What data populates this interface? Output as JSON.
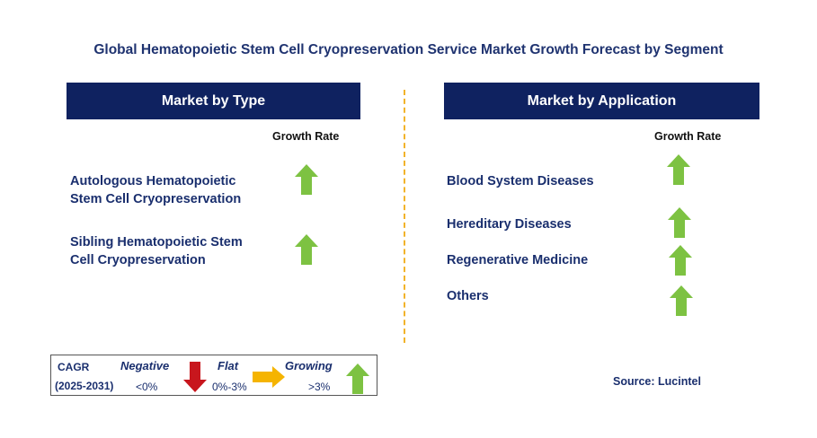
{
  "title": "Global Hematopoietic Stem Cell Cryopreservation Service Market Growth Forecast by Segment",
  "left_panel": {
    "header": "Market by Type",
    "growth_label": "Growth Rate",
    "items": [
      {
        "label_line1": "Autologous Hematopoietic",
        "label_line2": "Stem Cell Cryopreservation",
        "trend": "growing"
      },
      {
        "label_line1": "Sibling Hematopoietic Stem",
        "label_line2": "Cell Cryopreservation",
        "trend": "growing"
      }
    ]
  },
  "right_panel": {
    "header": "Market by Application",
    "growth_label": "Growth Rate",
    "items": [
      {
        "label": "Blood System Diseases",
        "trend": "growing"
      },
      {
        "label": "Hereditary Diseases",
        "trend": "growing"
      },
      {
        "label": "Regenerative Medicine",
        "trend": "growing"
      },
      {
        "label": "Others",
        "trend": "growing"
      }
    ]
  },
  "legend": {
    "cagr_label": "CAGR",
    "period": "(2025-2031)",
    "negative_label": "Negative",
    "negative_range": "<0%",
    "flat_label": "Flat",
    "flat_range": "0%-3%",
    "growing_label": "Growing",
    "growing_range": ">3%"
  },
  "source": "Source: Lucintel",
  "colors": {
    "header_bg": "#0f2260",
    "growing": "#7dc242",
    "negative": "#c8161d",
    "flat": "#f5b400",
    "divider": "#f2b32a"
  },
  "chart_data": {
    "type": "table",
    "title": "Global Hematopoietic Stem Cell Cryopreservation Service Market Growth Forecast by Segment",
    "segments": [
      {
        "name": "Market by Type",
        "column": "Growth Rate",
        "rows": [
          {
            "category": "Autologous Hematopoietic Stem Cell Cryopreservation",
            "growth": "Growing"
          },
          {
            "category": "Sibling Hematopoietic Stem Cell Cryopreservation",
            "growth": "Growing"
          }
        ]
      },
      {
        "name": "Market by Application",
        "column": "Growth Rate",
        "rows": [
          {
            "category": "Blood System Diseases",
            "growth": "Growing"
          },
          {
            "category": "Hereditary Diseases",
            "growth": "Growing"
          },
          {
            "category": "Regenerative Medicine",
            "growth": "Growing"
          },
          {
            "category": "Others",
            "growth": "Growing"
          }
        ]
      }
    ],
    "legend": [
      {
        "label": "Negative",
        "range": "<0%"
      },
      {
        "label": "Flat",
        "range": "0%-3%"
      },
      {
        "label": "Growing",
        "range": ">3%"
      }
    ]
  }
}
